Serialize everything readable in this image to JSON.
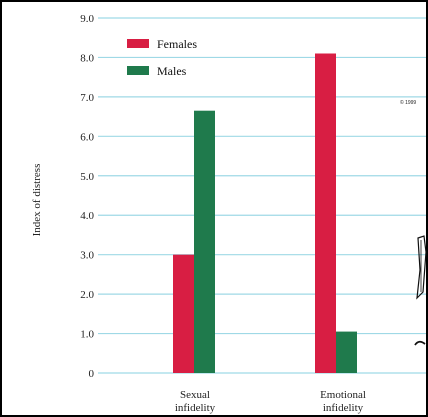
{
  "chart_data": {
    "type": "bar",
    "ylabel": "Index of distress",
    "xlabel": "",
    "ylim": [
      0,
      9.0
    ],
    "yticks": [
      "0",
      "1.0",
      "2.0",
      "3.0",
      "4.0",
      "5.0",
      "6.0",
      "7.0",
      "8.0",
      "9.0"
    ],
    "categories": [
      {
        "line1": "Sexual",
        "line2": "infidelity"
      },
      {
        "line1": "Emotional",
        "line2": "infidelity"
      }
    ],
    "series": [
      {
        "name": "Females",
        "color": "#d81e43",
        "values": [
          3.0,
          8.1
        ]
      },
      {
        "name": "Males",
        "color": "#1f7a4c",
        "values": [
          6.65,
          1.05
        ]
      }
    ],
    "grid": true,
    "gridline_color": "#9fd9e6",
    "legend_placement": "top-left"
  },
  "annotation": {
    "copyright": "© 1999"
  }
}
